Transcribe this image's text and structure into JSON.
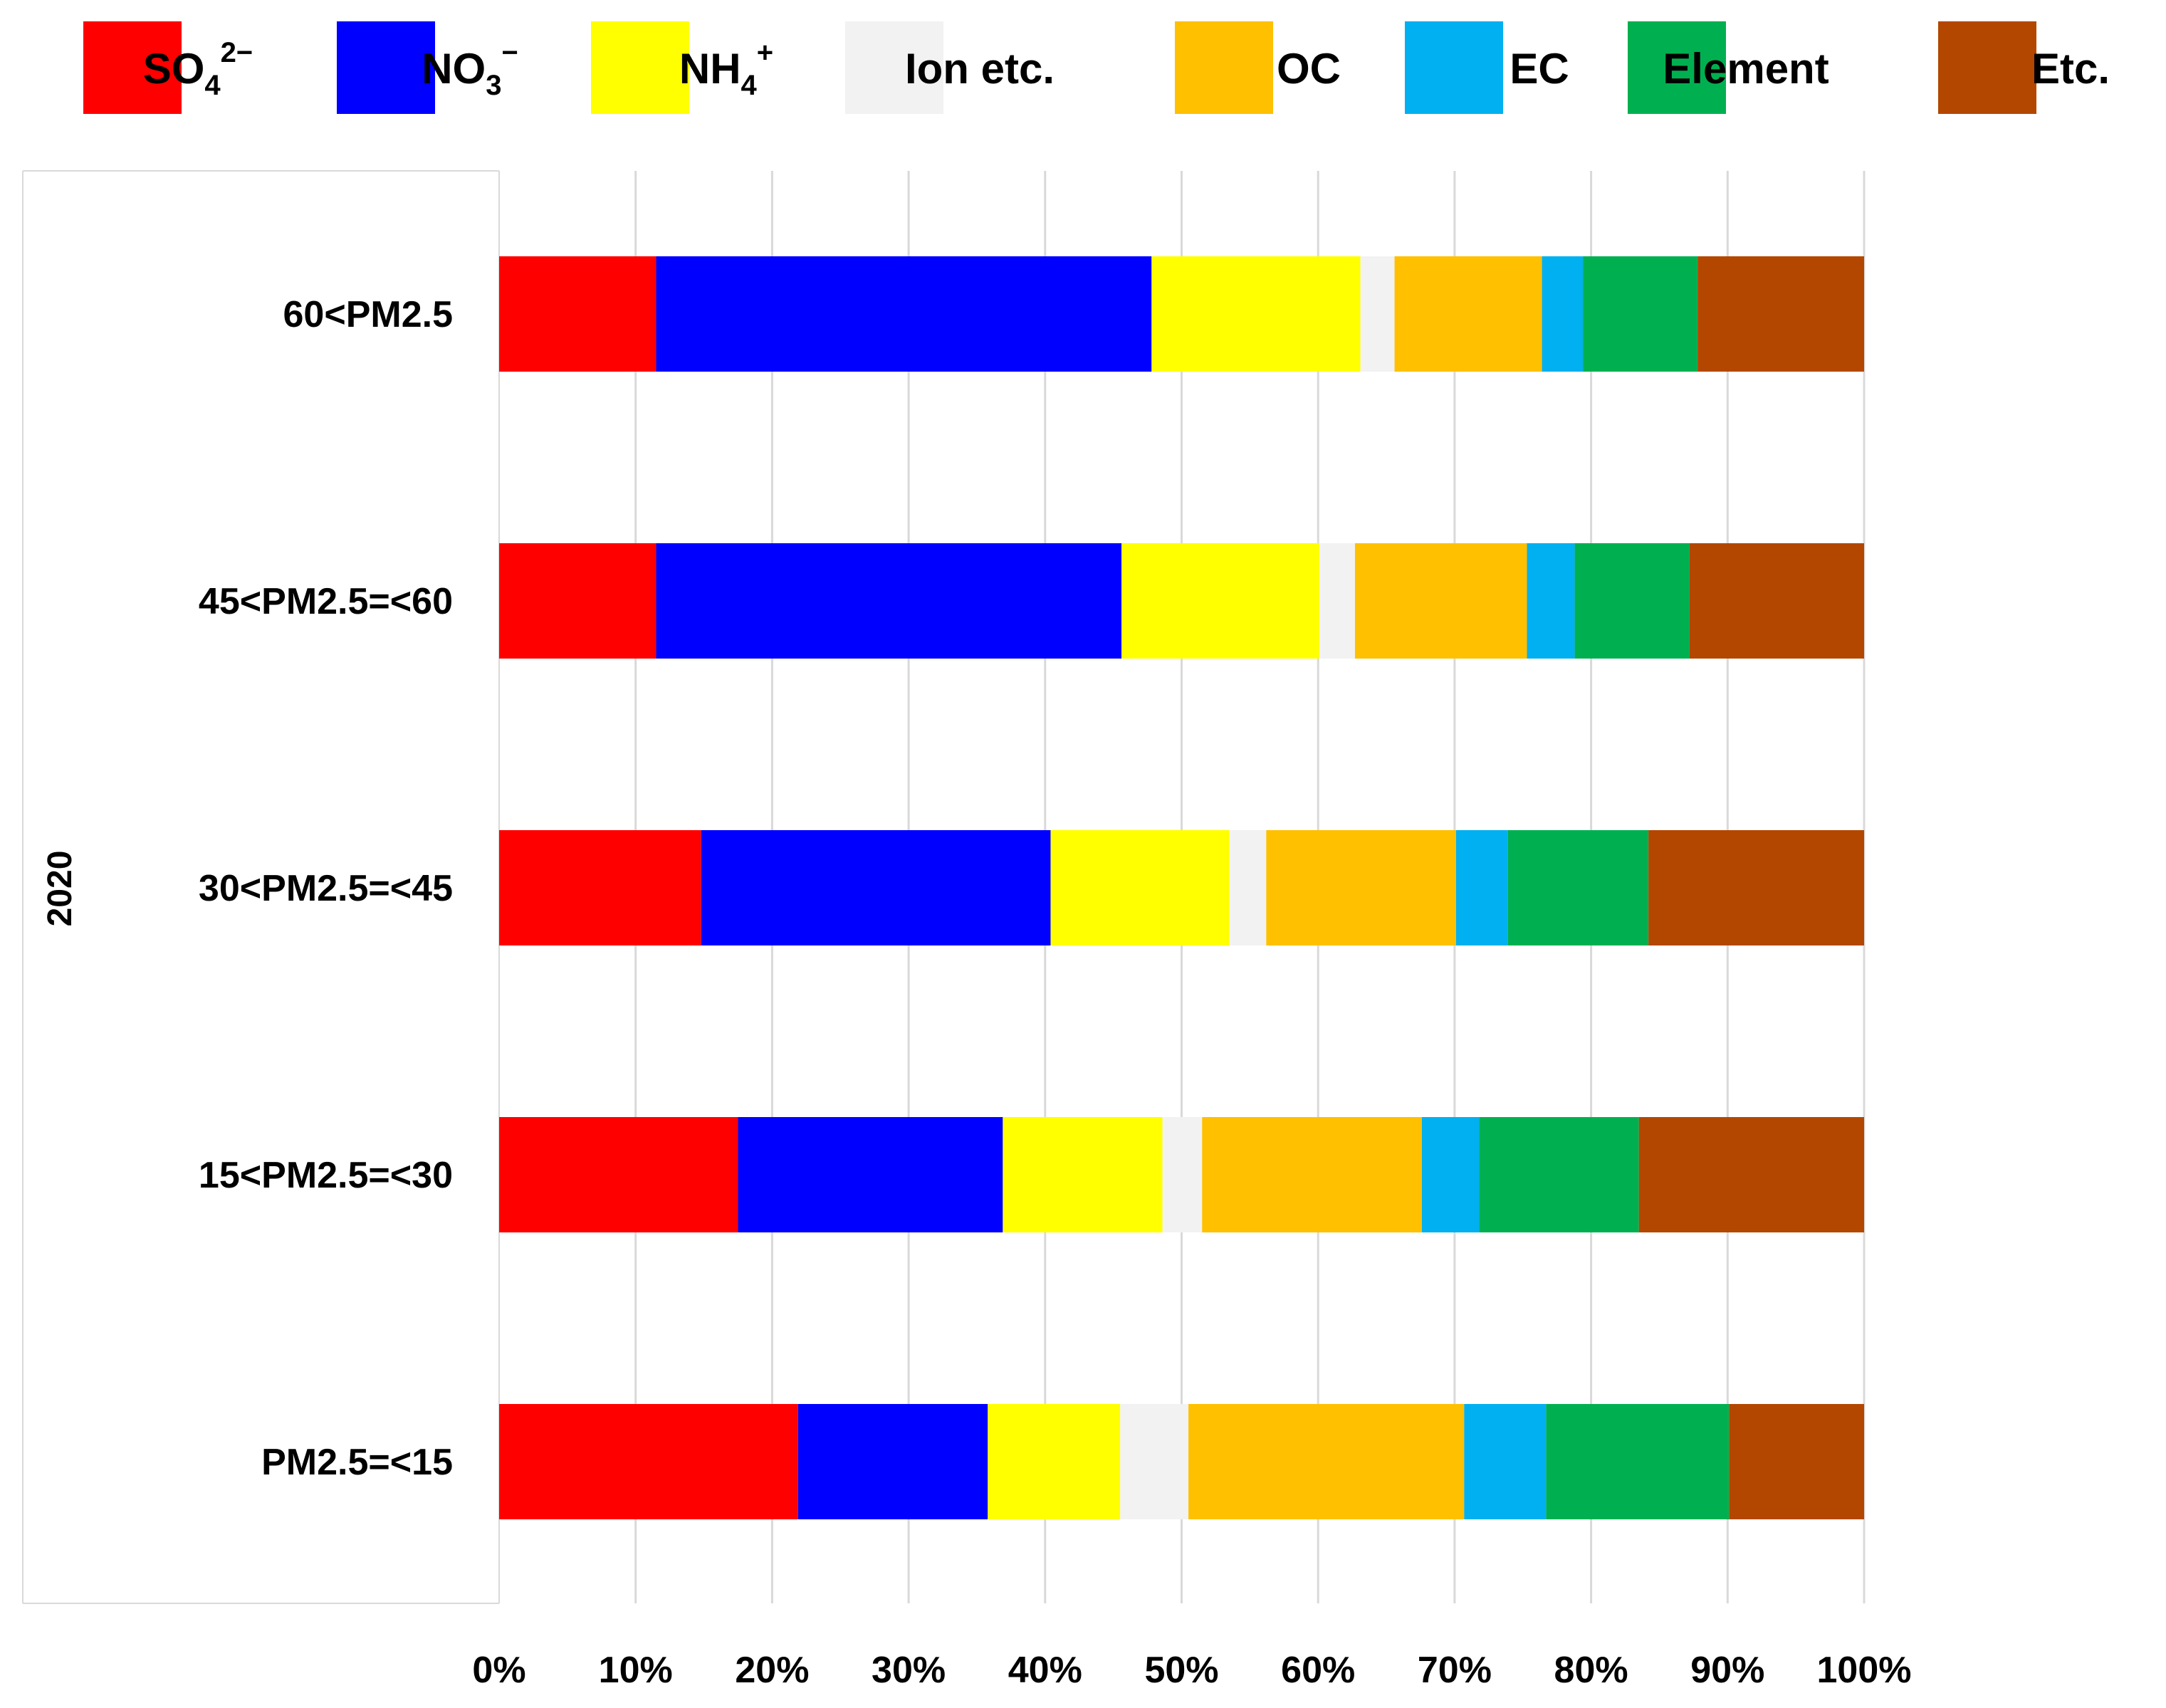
{
  "chart_data": {
    "type": "bar",
    "orientation": "horizontal",
    "stacked": "percent",
    "title": "",
    "group_label": "2020",
    "xlabel": "",
    "ylabel": "",
    "xlim": [
      0,
      100
    ],
    "x_ticks": [
      "0%",
      "10%",
      "20%",
      "30%",
      "40%",
      "50%",
      "60%",
      "70%",
      "80%",
      "90%",
      "100%"
    ],
    "categories": [
      "60<PM2.5",
      "45<PM2.5=<60",
      "30<PM2.5=<45",
      "15<PM2.5=<30",
      "PM2.5=<15"
    ],
    "legend_position": "top",
    "series": [
      {
        "key": "so4",
        "name": "SO",
        "sub": "4",
        "sup": "2−",
        "color": "#ff0000",
        "values": [
          11.5,
          11.5,
          14.8,
          17.5,
          21.9
        ]
      },
      {
        "key": "no3",
        "name": "NO",
        "sub": "3",
        "sup": "−",
        "color": "#0000ff",
        "values": [
          36.3,
          34.1,
          25.6,
          19.4,
          13.9
        ]
      },
      {
        "key": "nh4",
        "name": "NH",
        "sub": "4",
        "sup": "+",
        "color": "#ffff00",
        "values": [
          15.3,
          14.5,
          13.1,
          11.7,
          9.7
        ]
      },
      {
        "key": "ion",
        "name": "Ion etc.",
        "sub": "",
        "sup": "",
        "color": "#f2f2f2",
        "values": [
          2.5,
          2.6,
          2.7,
          2.9,
          5.0
        ]
      },
      {
        "key": "oc",
        "name": "OC",
        "sub": "",
        "sup": "",
        "color": "#ffc000",
        "values": [
          10.8,
          12.6,
          13.9,
          16.1,
          20.2
        ]
      },
      {
        "key": "ec",
        "name": "EC",
        "sub": "",
        "sup": "",
        "color": "#00b0f0",
        "values": [
          3.0,
          3.5,
          3.8,
          4.2,
          6.0
        ]
      },
      {
        "key": "element",
        "name": "Element",
        "sub": "",
        "sup": "",
        "color": "#00b050",
        "values": [
          8.4,
          8.4,
          10.3,
          11.7,
          13.4
        ]
      },
      {
        "key": "etc",
        "name": "Etc.",
        "sub": "",
        "sup": "",
        "color": "#b34700",
        "values": [
          12.2,
          12.8,
          15.8,
          16.5,
          9.9
        ]
      }
    ]
  }
}
